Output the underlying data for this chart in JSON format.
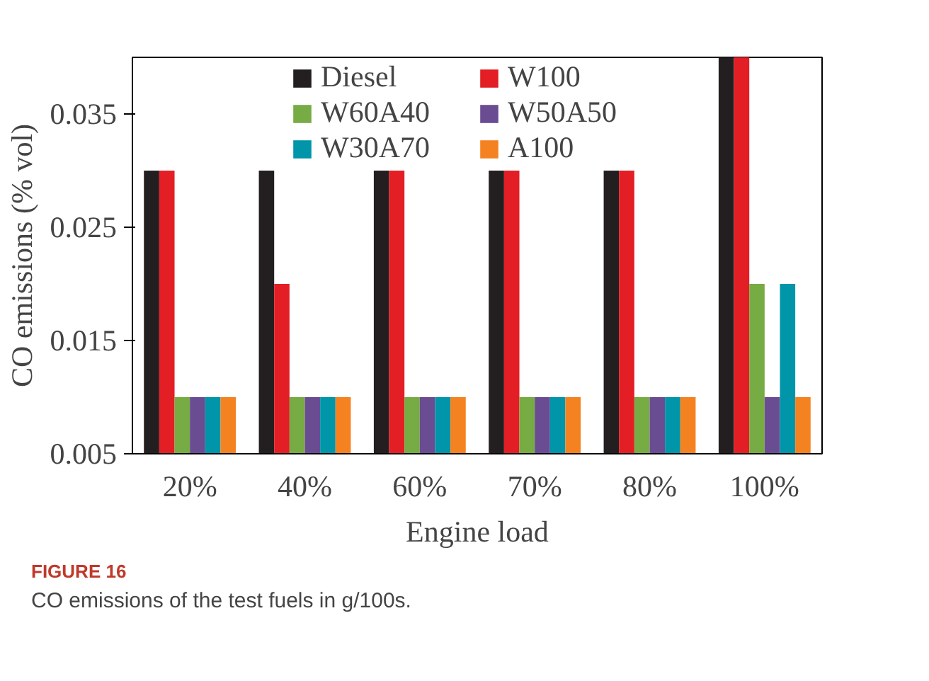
{
  "chart_data": {
    "type": "bar",
    "xlabel": "Engine load",
    "ylabel": "CO emissions (% vol)",
    "categories": [
      "20%",
      "40%",
      "60%",
      "70%",
      "80%",
      "100%"
    ],
    "series": [
      {
        "name": "Diesel",
        "color": "#231f20",
        "values": [
          0.03,
          0.03,
          0.03,
          0.03,
          0.03,
          0.04
        ]
      },
      {
        "name": "W100",
        "color": "#e31e24",
        "values": [
          0.03,
          0.02,
          0.03,
          0.03,
          0.03,
          0.04
        ]
      },
      {
        "name": "W60A40",
        "color": "#77ab43",
        "values": [
          0.01,
          0.01,
          0.01,
          0.01,
          0.01,
          0.02
        ]
      },
      {
        "name": "W50A50",
        "color": "#6a4c93",
        "values": [
          0.01,
          0.01,
          0.01,
          0.01,
          0.01,
          0.01
        ]
      },
      {
        "name": "W30A70",
        "color": "#0095a8",
        "values": [
          0.01,
          0.01,
          0.01,
          0.01,
          0.01,
          0.02
        ]
      },
      {
        "name": "A100",
        "color": "#f58220",
        "values": [
          0.01,
          0.01,
          0.01,
          0.01,
          0.01,
          0.01
        ]
      }
    ],
    "ylim": [
      0.005,
      0.04
    ],
    "yticks": [
      0.005,
      0.015,
      0.025,
      0.035
    ],
    "grid": false,
    "legend": "top",
    "annotations": [
      "FIGURE 16",
      "CO emissions of the test fuels in g/100s."
    ]
  }
}
